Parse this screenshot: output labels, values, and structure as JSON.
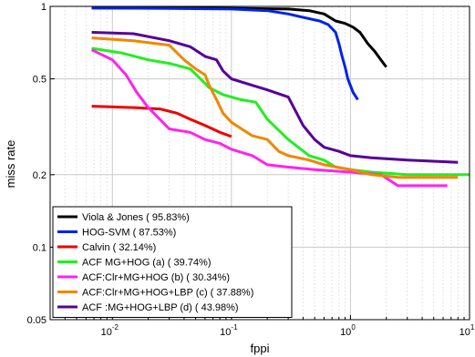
{
  "chart_data": {
    "type": "line",
    "xlabel": "fppi",
    "ylabel": "miss rate",
    "xscale": "log",
    "yscale": "log",
    "xlim": [
      0.003,
      10
    ],
    "ylim": [
      0.05,
      1
    ],
    "xticks": [
      {
        "value": 0.01,
        "label_base": "10",
        "label_exp": "-2"
      },
      {
        "value": 0.1,
        "label_base": "10",
        "label_exp": "-1"
      },
      {
        "value": 1,
        "label_base": "10",
        "label_exp": "0"
      },
      {
        "value": 10,
        "label_base": "10",
        "label_exp": "1"
      }
    ],
    "yticks": [
      {
        "value": 0.05,
        "label": "0.05"
      },
      {
        "value": 0.1,
        "label": "0.1"
      },
      {
        "value": 0.2,
        "label": "0.2"
      },
      {
        "value": 0.5,
        "label": "0.5"
      },
      {
        "value": 1,
        "label": "1"
      }
    ],
    "grid": true,
    "legend_position": "bottom-left",
    "series": [
      {
        "name": "Viola & Jones ( 95.83%)",
        "color": "#000000",
        "points": [
          [
            0.0067,
            0.985
          ],
          [
            0.02,
            0.985
          ],
          [
            0.05,
            0.984
          ],
          [
            0.1,
            0.982
          ],
          [
            0.2,
            0.978
          ],
          [
            0.3,
            0.975
          ],
          [
            0.45,
            0.96
          ],
          [
            0.6,
            0.93
          ],
          [
            0.75,
            0.87
          ],
          [
            0.9,
            0.85
          ],
          [
            1.05,
            0.82
          ],
          [
            1.2,
            0.78
          ],
          [
            1.4,
            0.7
          ],
          [
            1.6,
            0.65
          ],
          [
            1.8,
            0.6
          ],
          [
            2.0,
            0.56
          ]
        ]
      },
      {
        "name": "HOG-SVM ( 87.53%)",
        "color": "#0022ee",
        "points": [
          [
            0.0067,
            0.985
          ],
          [
            0.03,
            0.98
          ],
          [
            0.1,
            0.975
          ],
          [
            0.2,
            0.96
          ],
          [
            0.3,
            0.93
          ],
          [
            0.4,
            0.9
          ],
          [
            0.55,
            0.87
          ],
          [
            0.65,
            0.84
          ],
          [
            0.75,
            0.78
          ],
          [
            0.8,
            0.7
          ],
          [
            0.85,
            0.62
          ],
          [
            0.9,
            0.56
          ],
          [
            0.95,
            0.5
          ],
          [
            1.05,
            0.44
          ],
          [
            1.15,
            0.41
          ]
        ]
      },
      {
        "name": "Calvin ( 32.14%)",
        "color": "#ee0000",
        "points": [
          [
            0.0067,
            0.385
          ],
          [
            0.015,
            0.38
          ],
          [
            0.025,
            0.375
          ],
          [
            0.035,
            0.36
          ],
          [
            0.045,
            0.34
          ],
          [
            0.06,
            0.32
          ],
          [
            0.08,
            0.3
          ],
          [
            0.1,
            0.288
          ]
        ]
      },
      {
        "name": "ACF MG+HOG (a) ( 39.74%)",
        "color": "#22ee22",
        "points": [
          [
            0.0067,
            0.67
          ],
          [
            0.012,
            0.64
          ],
          [
            0.02,
            0.6
          ],
          [
            0.03,
            0.58
          ],
          [
            0.045,
            0.55
          ],
          [
            0.055,
            0.5
          ],
          [
            0.065,
            0.46
          ],
          [
            0.085,
            0.43
          ],
          [
            0.12,
            0.41
          ],
          [
            0.16,
            0.4
          ],
          [
            0.2,
            0.34
          ],
          [
            0.3,
            0.28
          ],
          [
            0.45,
            0.24
          ],
          [
            0.6,
            0.23
          ],
          [
            0.75,
            0.215
          ],
          [
            1.0,
            0.21
          ],
          [
            1.5,
            0.205
          ],
          [
            3.0,
            0.2
          ],
          [
            10,
            0.2
          ]
        ]
      },
      {
        "name": "ACF:Clr+MG+HOG (b) ( 30.34%)",
        "color": "#ff22ee",
        "points": [
          [
            0.0067,
            0.66
          ],
          [
            0.01,
            0.6
          ],
          [
            0.013,
            0.52
          ],
          [
            0.016,
            0.44
          ],
          [
            0.02,
            0.38
          ],
          [
            0.025,
            0.34
          ],
          [
            0.03,
            0.31
          ],
          [
            0.045,
            0.3
          ],
          [
            0.06,
            0.28
          ],
          [
            0.08,
            0.27
          ],
          [
            0.1,
            0.255
          ],
          [
            0.15,
            0.24
          ],
          [
            0.2,
            0.22
          ],
          [
            0.3,
            0.215
          ],
          [
            0.5,
            0.21
          ],
          [
            1.0,
            0.205
          ],
          [
            1.8,
            0.2
          ],
          [
            2.5,
            0.18
          ],
          [
            6.5,
            0.18
          ]
        ]
      },
      {
        "name": "ACF:Clr+MG+HOG+LBP (c) ( 37.88%)",
        "color": "#ee8800",
        "points": [
          [
            0.0067,
            0.74
          ],
          [
            0.015,
            0.72
          ],
          [
            0.03,
            0.69
          ],
          [
            0.04,
            0.6
          ],
          [
            0.05,
            0.55
          ],
          [
            0.06,
            0.52
          ],
          [
            0.065,
            0.47
          ],
          [
            0.075,
            0.41
          ],
          [
            0.085,
            0.36
          ],
          [
            0.1,
            0.33
          ],
          [
            0.15,
            0.29
          ],
          [
            0.2,
            0.28
          ],
          [
            0.25,
            0.25
          ],
          [
            0.3,
            0.24
          ],
          [
            0.45,
            0.23
          ],
          [
            0.6,
            0.22
          ],
          [
            1.0,
            0.21
          ],
          [
            1.5,
            0.2
          ],
          [
            2.5,
            0.195
          ],
          [
            8.0,
            0.195
          ]
        ]
      },
      {
        "name": "ACF :MG+HOG+LBP (d) ( 43.98%)",
        "color": "#550099",
        "points": [
          [
            0.0067,
            0.78
          ],
          [
            0.015,
            0.77
          ],
          [
            0.03,
            0.72
          ],
          [
            0.045,
            0.68
          ],
          [
            0.06,
            0.62
          ],
          [
            0.075,
            0.6
          ],
          [
            0.085,
            0.54
          ],
          [
            0.1,
            0.5
          ],
          [
            0.15,
            0.47
          ],
          [
            0.2,
            0.45
          ],
          [
            0.3,
            0.42
          ],
          [
            0.4,
            0.32
          ],
          [
            0.5,
            0.28
          ],
          [
            0.6,
            0.26
          ],
          [
            0.8,
            0.25
          ],
          [
            1.0,
            0.24
          ],
          [
            1.5,
            0.235
          ],
          [
            3.0,
            0.23
          ],
          [
            8.0,
            0.225
          ]
        ]
      }
    ]
  }
}
